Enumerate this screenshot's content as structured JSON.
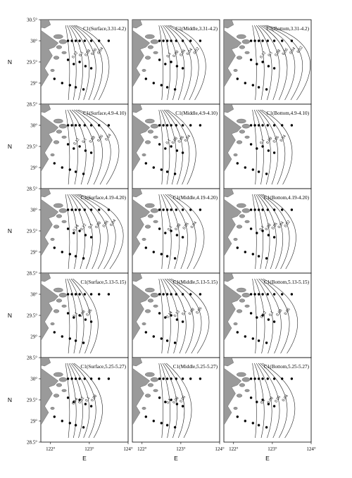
{
  "figure": {
    "x_axis_label": "E",
    "y_axis_label": "N",
    "y_ticks": [
      "30.5°",
      "30°",
      "29.5°",
      "29°",
      "28.5°"
    ],
    "x_ticks": [
      "122°",
      "123°",
      "124°"
    ],
    "colors": {
      "land": "#9a9a9a",
      "contour": "#222222",
      "station": "#000000",
      "frame": "#000000"
    }
  },
  "chart_data": {
    "type": "contour-map",
    "grid": {
      "rows": 5,
      "cols": 3
    },
    "xlim": [
      121.75,
      124.0
    ],
    "ylim": [
      28.5,
      30.5
    ],
    "panels": [
      {
        "title": "C1(Surface,3.31-4.2)",
        "labels": [
          "0.12",
          "0.1",
          "0.08",
          "0.06",
          "0.04"
        ]
      },
      {
        "title": "C1(Middle,3.31-4.2)",
        "labels": [
          "0.1",
          "0.08",
          "0.06",
          "0.04",
          "0.02"
        ]
      },
      {
        "title": "C1(Bottom,3.31-4.2)",
        "labels": [
          "0.12",
          "0.1",
          "0.08",
          "0.06",
          "0.04",
          "0.02"
        ]
      },
      {
        "title": "C1(Surface,4.9-4.10)",
        "labels": [
          "0.12",
          "0.1",
          "0.08",
          "0.06",
          "0.04"
        ]
      },
      {
        "title": "C1(Middle,4.9-4.10)",
        "labels": [
          "0.1",
          "0.08",
          "0.06",
          "0.04"
        ]
      },
      {
        "title": "C1(Bottom,4.9-4.10)",
        "labels": [
          "0.1",
          "0.08",
          "0.06",
          "0.04"
        ]
      },
      {
        "title": "C1(Surface,4.19-4.20)",
        "labels": [
          "0.14",
          "0.12",
          "0.1",
          "0.08",
          "0.06",
          "0.04"
        ]
      },
      {
        "title": "C1(Middle,4.19-4.20)",
        "labels": [
          "0.1",
          "0.08",
          "0.06",
          "0.04"
        ]
      },
      {
        "title": "C1(Bottom,4.19-4.20)",
        "labels": [
          "0.1",
          "0.08",
          "0.06",
          "0.04",
          "0.02"
        ]
      },
      {
        "title": "C1(Surface,5.13-5.15)",
        "labels": [
          "0.1",
          "0.08",
          "0.06"
        ]
      },
      {
        "title": "C1(Middle,5.13-5.15)",
        "labels": [
          "0.14",
          "0.12",
          "0.1",
          "0.08",
          "0.06"
        ]
      },
      {
        "title": "C1(Bottom,5.13-5.15)",
        "labels": [
          "0.12",
          "0.1",
          "0.08",
          "0.06"
        ]
      },
      {
        "title": "C1(Surface,5.25-5.27)",
        "labels": [
          "0.14",
          "0.12",
          "0.1",
          "0.08"
        ]
      },
      {
        "title": "C1(Middle,5.25-5.27)",
        "labels": [
          "0.1",
          "0.08",
          "0.06"
        ]
      },
      {
        "title": "C1(Bottom,5.25-5.27)",
        "labels": [
          "0.1",
          "0.08",
          "0.06",
          "0.04"
        ]
      }
    ],
    "stations": [
      [
        122.45,
        30.0
      ],
      [
        122.55,
        30.0
      ],
      [
        122.65,
        30.0
      ],
      [
        122.75,
        30.0
      ],
      [
        122.88,
        30.0
      ],
      [
        123.05,
        30.0
      ],
      [
        123.25,
        30.0
      ],
      [
        123.5,
        30.0
      ],
      [
        122.45,
        29.55
      ],
      [
        122.6,
        29.45
      ],
      [
        122.75,
        29.5
      ],
      [
        122.9,
        29.4
      ],
      [
        123.05,
        29.35
      ],
      [
        122.1,
        29.1
      ],
      [
        122.3,
        29.0
      ],
      [
        122.5,
        28.95
      ],
      [
        122.65,
        28.9
      ],
      [
        122.85,
        28.85
      ]
    ]
  }
}
